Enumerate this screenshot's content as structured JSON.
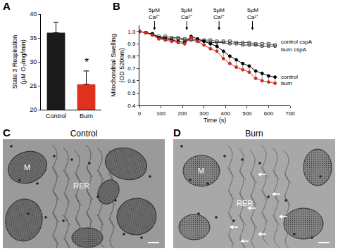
{
  "chart_data": [
    {
      "panel": "A",
      "type": "bar",
      "categories": [
        "Control",
        "Burn"
      ],
      "values": [
        36.1,
        25.3
      ],
      "errors": [
        2.2,
        2.8
      ],
      "colors": [
        "#1a1a1a",
        "#e0301e"
      ],
      "ylabel": "State 3 Respiration\n(μM O₂/mg/min)",
      "ylim": [
        20,
        40
      ],
      "yticks": [
        20,
        25,
        30,
        35,
        40
      ],
      "annotations": [
        {
          "category": "Burn",
          "y": 28.4,
          "text": "*"
        }
      ],
      "grid": false
    },
    {
      "panel": "B",
      "type": "line",
      "x": [
        0,
        30,
        60,
        90,
        120,
        150,
        180,
        210,
        240,
        270,
        300,
        330,
        360,
        390,
        420,
        450,
        480,
        510,
        540,
        570,
        600,
        630
      ],
      "series": [
        {
          "name": "control cspA",
          "color": "#555555",
          "marker": "square-open",
          "line_style": "solid",
          "values": [
            1.0,
            0.99,
            0.98,
            0.96,
            0.96,
            0.95,
            0.95,
            0.94,
            0.94,
            0.93,
            0.93,
            0.93,
            0.92,
            0.92,
            0.92,
            0.91,
            0.91,
            0.91,
            0.9,
            0.9,
            0.9,
            0.89
          ]
        },
        {
          "name": "burn cspA",
          "color": "#333333",
          "marker": "circle-open",
          "line_style": "solid",
          "values": [
            1.0,
            0.99,
            0.98,
            0.95,
            0.95,
            0.94,
            0.94,
            0.93,
            0.93,
            0.92,
            0.92,
            0.91,
            0.91,
            0.91,
            0.9,
            0.9,
            0.89,
            0.89,
            0.89,
            0.88,
            0.88,
            0.88
          ]
        },
        {
          "name": "control",
          "color": "#000000",
          "marker": "circle",
          "line_style": "solid",
          "values": [
            1.0,
            0.99,
            0.98,
            0.95,
            0.94,
            0.93,
            0.92,
            0.91,
            0.96,
            0.94,
            0.92,
            0.9,
            0.88,
            0.84,
            0.8,
            0.77,
            0.74,
            0.72,
            0.68,
            0.66,
            0.64,
            0.63
          ],
          "error_minus": [
            0.01,
            0.01,
            0.01,
            0.02,
            0.02,
            0.02,
            0.02,
            0.02,
            0.02,
            0.03,
            0.03,
            0.03,
            0.04,
            0.04,
            0.05,
            0.05,
            0.05,
            0.05,
            0.05,
            0.05,
            0.05,
            0.05
          ]
        },
        {
          "name": "burn",
          "color": "#d42a1e",
          "marker": "circle",
          "line_style": "solid",
          "values": [
            1.0,
            0.99,
            0.97,
            0.94,
            0.93,
            0.92,
            0.91,
            0.9,
            0.95,
            0.92,
            0.89,
            0.86,
            0.84,
            0.78,
            0.74,
            0.71,
            0.69,
            0.67,
            0.62,
            0.6,
            0.59,
            0.58
          ]
        }
      ],
      "xlabel": "Time (s)",
      "ylabel": "Mitochondrial Swelling\n(OD 520nm)",
      "xlim": [
        0,
        700
      ],
      "xticks": [
        0,
        100,
        200,
        300,
        400,
        500,
        600,
        700
      ],
      "ylim": [
        0.4,
        1.05
      ],
      "yticks": [
        0.4,
        0.5,
        0.6,
        0.7,
        0.8,
        0.9,
        {
          "value": 1,
          "label": "1.0"
        }
      ],
      "annotations": [
        {
          "x": 70,
          "y": 1.01,
          "text": "5μM\nCa²⁺"
        },
        {
          "x": 220,
          "y": 1.01,
          "text": "5μM\nCa²⁺"
        },
        {
          "x": 370,
          "y": 1.01,
          "text": "5μM\nCa²⁺"
        },
        {
          "x": 525,
          "y": 1.01,
          "text": "5μM\nCa²⁺"
        }
      ],
      "grid": false
    }
  ],
  "images": [
    {
      "panel": "C",
      "title": "Control",
      "labels": [
        "M",
        "RER"
      ]
    },
    {
      "panel": "D",
      "title": "Burn",
      "labels": [
        "M",
        "RER"
      ]
    }
  ]
}
